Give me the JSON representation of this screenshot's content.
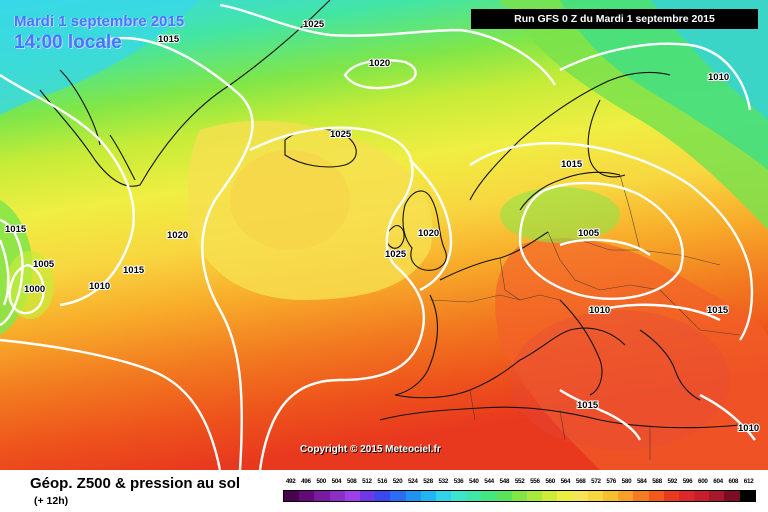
{
  "header": {
    "date": "Mardi 1 septembre 2015",
    "time": "14:00 locale",
    "run_info": "Run GFS 0 Z du Mardi 1 septembre 2015"
  },
  "map": {
    "copyright": "Copyright © 2015 Meteociel.fr",
    "isobar_labels": [
      "1025",
      "1015",
      "1020",
      "1025",
      "1010",
      "1015",
      "1015",
      "1005",
      "1000",
      "1010",
      "1020",
      "1015",
      "1025",
      "1020",
      "1005",
      "1010",
      "1015",
      "1015",
      "1010"
    ],
    "colors": {
      "isobar": "#ffffff",
      "coast": "#111111",
      "border": "#333333"
    }
  },
  "footer": {
    "title": "Géop. Z500 & pression au sol",
    "subtitle": "(+ 12h)"
  },
  "legend": {
    "values": [
      "492",
      "496",
      "500",
      "504",
      "508",
      "512",
      "516",
      "520",
      "524",
      "528",
      "532",
      "536",
      "540",
      "544",
      "548",
      "552",
      "556",
      "560",
      "564",
      "568",
      "572",
      "576",
      "580",
      "584",
      "588",
      "592",
      "596",
      "600",
      "604",
      "608",
      "612"
    ],
    "colors": [
      "#4a0050",
      "#630a78",
      "#7a1a9e",
      "#8c2fc4",
      "#9d3ee6",
      "#6e38e6",
      "#3b47f0",
      "#2a6cf2",
      "#1f92f2",
      "#22b4f0",
      "#2fd4ec",
      "#3de4d0",
      "#3fe6a8",
      "#44e680",
      "#5ae35a",
      "#82e648",
      "#a8ea3c",
      "#ccec38",
      "#ecee40",
      "#f8e458",
      "#f8d640",
      "#f8c030",
      "#f8a028",
      "#f47c20",
      "#f05a1c",
      "#ea3a1e",
      "#dc2828",
      "#c81e2c",
      "#a8182c",
      "#7c0e24",
      "#000000"
    ]
  }
}
